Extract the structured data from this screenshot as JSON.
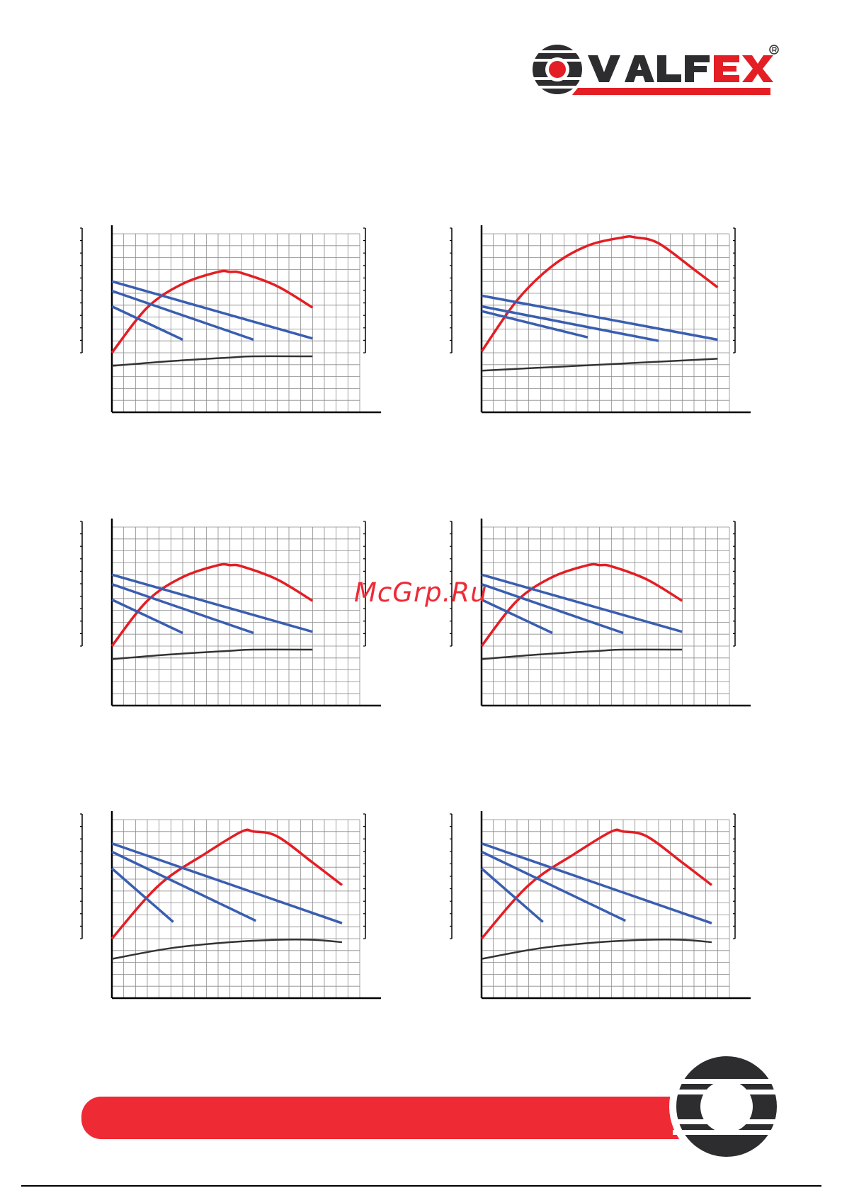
{
  "brand": {
    "name": "VALFEX",
    "registered_mark": "®",
    "colors": {
      "red": "#e31e24",
      "dark": "#2d2d2f"
    }
  },
  "watermark": "McGrp.Ru",
  "chart_colors": {
    "efficiency": "#e31e24",
    "pump": "#3a5eb0",
    "power": "#333333",
    "grid": "#8a8a8a"
  },
  "chart_data": [
    {
      "type": "line",
      "grid": true,
      "xlim": [
        0,
        21
      ],
      "ylim": [
        0,
        15
      ],
      "series": [
        {
          "color": "red",
          "x": [
            0,
            3,
            6,
            9,
            10,
            11,
            14,
            17
          ],
          "y": [
            5,
            8.8,
            10.8,
            11.8,
            11.8,
            11.7,
            10.6,
            8.8
          ]
        },
        {
          "color": "blue",
          "x": [
            0,
            17
          ],
          "y": [
            11,
            6.2
          ]
        },
        {
          "color": "blue",
          "x": [
            0,
            12
          ],
          "y": [
            10.2,
            6.1
          ]
        },
        {
          "color": "blue",
          "x": [
            0,
            6
          ],
          "y": [
            8.9,
            6.1
          ]
        },
        {
          "color": "black",
          "x": [
            0,
            5,
            10,
            12,
            17
          ],
          "y": [
            3.9,
            4.3,
            4.6,
            4.7,
            4.7
          ]
        }
      ]
    },
    {
      "type": "line",
      "grid": true,
      "xlim": [
        0,
        21
      ],
      "ylim": [
        0,
        15
      ],
      "series": [
        {
          "color": "red",
          "x": [
            0,
            3,
            6,
            9,
            12,
            13,
            15,
            18,
            20
          ],
          "y": [
            5.1,
            9.4,
            12.3,
            14,
            14.7,
            14.7,
            14.2,
            12,
            10.5
          ]
        },
        {
          "color": "blue",
          "x": [
            0,
            20
          ],
          "y": [
            9.8,
            6.1
          ]
        },
        {
          "color": "blue",
          "x": [
            0,
            15
          ],
          "y": [
            8.9,
            6
          ]
        },
        {
          "color": "blue",
          "x": [
            0,
            9
          ],
          "y": [
            8.5,
            6.3
          ]
        },
        {
          "color": "black",
          "x": [
            0,
            20
          ],
          "y": [
            3.5,
            4.5
          ]
        }
      ]
    },
    {
      "type": "line",
      "grid": true,
      "xlim": [
        0,
        21
      ],
      "ylim": [
        0,
        15
      ],
      "series": [
        {
          "color": "red",
          "x": [
            0,
            3,
            6,
            9,
            10,
            11,
            14,
            17
          ],
          "y": [
            5,
            8.8,
            10.8,
            11.8,
            11.8,
            11.7,
            10.6,
            8.8
          ]
        },
        {
          "color": "blue",
          "x": [
            0,
            17
          ],
          "y": [
            11,
            6.2
          ]
        },
        {
          "color": "blue",
          "x": [
            0,
            12
          ],
          "y": [
            10.2,
            6.1
          ]
        },
        {
          "color": "blue",
          "x": [
            0,
            6
          ],
          "y": [
            8.9,
            6.1
          ]
        },
        {
          "color": "black",
          "x": [
            0,
            5,
            10,
            12,
            17
          ],
          "y": [
            3.9,
            4.3,
            4.6,
            4.7,
            4.7
          ]
        }
      ]
    },
    {
      "type": "line",
      "grid": true,
      "xlim": [
        0,
        21
      ],
      "ylim": [
        0,
        15
      ],
      "series": [
        {
          "color": "red",
          "x": [
            0,
            3,
            6,
            9,
            10,
            11,
            14,
            17
          ],
          "y": [
            5,
            8.8,
            10.8,
            11.8,
            11.8,
            11.7,
            10.6,
            8.8
          ]
        },
        {
          "color": "blue",
          "x": [
            0,
            17
          ],
          "y": [
            11,
            6.2
          ]
        },
        {
          "color": "blue",
          "x": [
            0,
            12
          ],
          "y": [
            10.2,
            6.1
          ]
        },
        {
          "color": "blue",
          "x": [
            0,
            6
          ],
          "y": [
            8.9,
            6.1
          ]
        },
        {
          "color": "black",
          "x": [
            0,
            5,
            10,
            12,
            17
          ],
          "y": [
            3.9,
            4.3,
            4.6,
            4.7,
            4.7
          ]
        }
      ]
    },
    {
      "type": "line",
      "grid": true,
      "xlim": [
        0,
        21
      ],
      "ylim": [
        0,
        15
      ],
      "series": [
        {
          "color": "red",
          "x": [
            0,
            4,
            8,
            11,
            12,
            14,
            17,
            19.5
          ],
          "y": [
            5,
            9.5,
            12.2,
            14,
            14,
            13.6,
            11.4,
            9.5
          ]
        },
        {
          "color": "blue",
          "x": [
            0,
            19.5
          ],
          "y": [
            13,
            6.3
          ]
        },
        {
          "color": "blue",
          "x": [
            0,
            12.2
          ],
          "y": [
            12.3,
            6.5
          ]
        },
        {
          "color": "blue",
          "x": [
            0,
            5.2
          ],
          "y": [
            10.9,
            6.4
          ]
        },
        {
          "color": "black",
          "x": [
            0,
            5,
            10,
            14,
            17,
            19.5
          ],
          "y": [
            3.3,
            4.2,
            4.7,
            4.9,
            4.9,
            4.7
          ]
        }
      ]
    },
    {
      "type": "line",
      "grid": true,
      "xlim": [
        0,
        21
      ],
      "ylim": [
        0,
        15
      ],
      "series": [
        {
          "color": "red",
          "x": [
            0,
            4,
            8,
            11,
            12,
            14,
            17,
            19.5
          ],
          "y": [
            5,
            9.5,
            12.2,
            14,
            14,
            13.6,
            11.4,
            9.5
          ]
        },
        {
          "color": "blue",
          "x": [
            0,
            19.5
          ],
          "y": [
            13,
            6.3
          ]
        },
        {
          "color": "blue",
          "x": [
            0,
            12.2
          ],
          "y": [
            12.3,
            6.5
          ]
        },
        {
          "color": "blue",
          "x": [
            0,
            5.2
          ],
          "y": [
            10.9,
            6.4
          ]
        },
        {
          "color": "black",
          "x": [
            0,
            5,
            10,
            14,
            17,
            19.5
          ],
          "y": [
            3.3,
            4.2,
            4.7,
            4.9,
            4.9,
            4.7
          ]
        }
      ]
    }
  ]
}
